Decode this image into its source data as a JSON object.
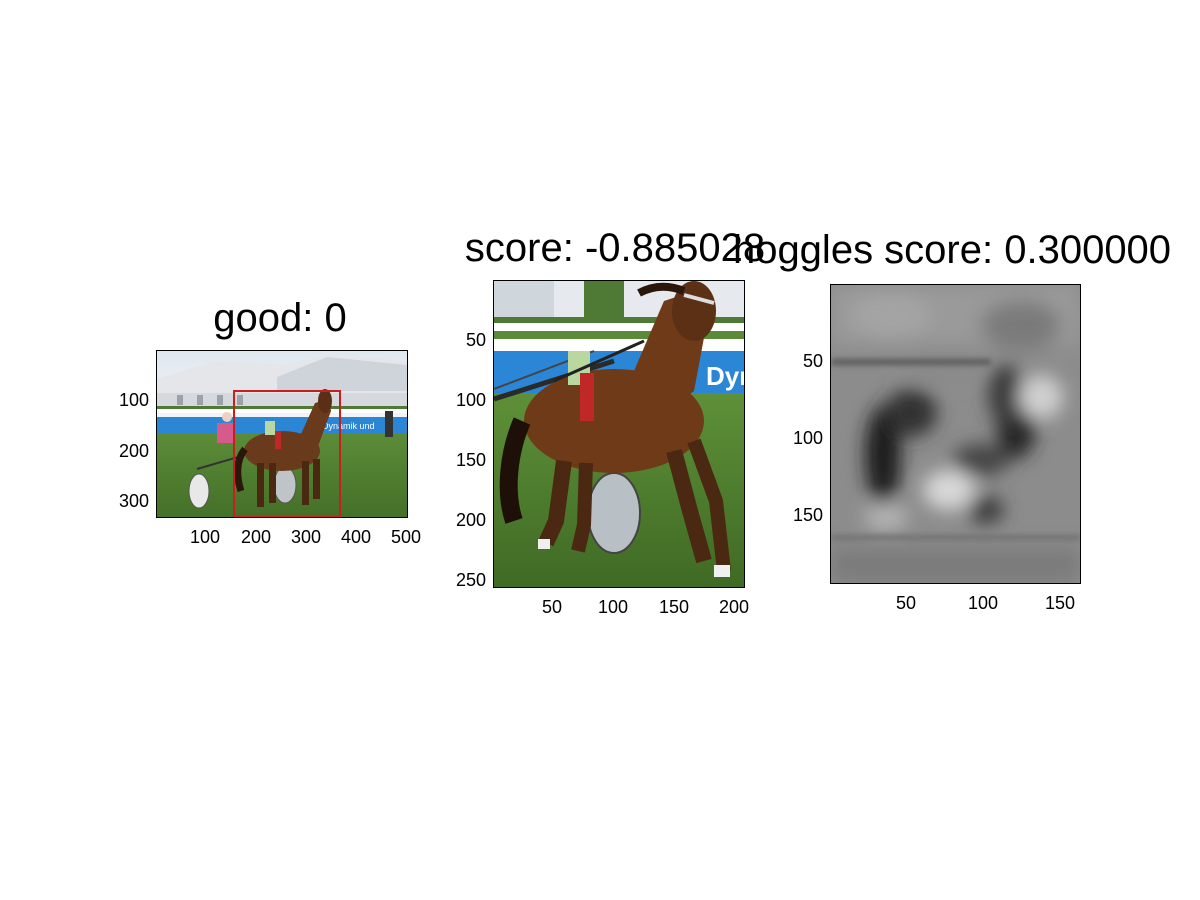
{
  "figure": {
    "background": "#ffffff",
    "panels": [
      {
        "id": "panel1",
        "title": "good: 0",
        "image": "horse racing sulky photo",
        "box_color": "#c81e1e",
        "x_ticks": [
          "100",
          "200",
          "300",
          "400",
          "500"
        ],
        "y_ticks": [
          "100",
          "200",
          "300"
        ]
      },
      {
        "id": "panel2",
        "title": "score: -0.885028",
        "image": "cropped horse photo",
        "x_ticks": [
          "50",
          "100",
          "150",
          "200"
        ],
        "y_ticks": [
          "50",
          "100",
          "150",
          "200",
          "250"
        ]
      },
      {
        "id": "panel3",
        "title": "hoggles score: 0.300000",
        "image": "grayscale HOG visualization",
        "x_ticks": [
          "50",
          "100",
          "150"
        ],
        "y_ticks": [
          "50",
          "100",
          "150"
        ]
      }
    ]
  }
}
